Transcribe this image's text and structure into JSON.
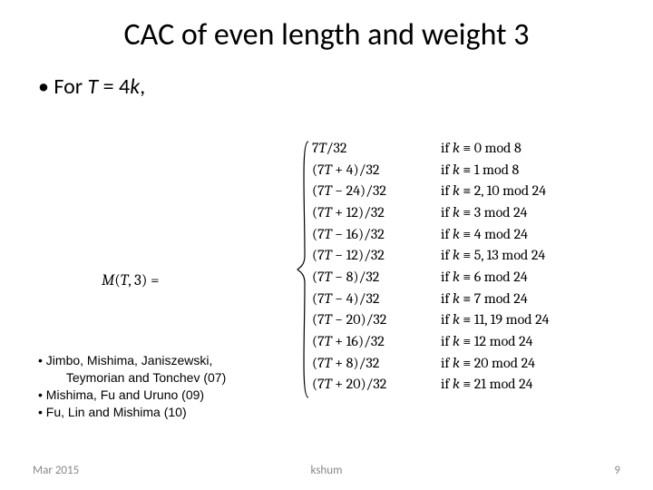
{
  "title": "CAC of even length and weight 3",
  "main_bullet_prefix": "• For ",
  "main_bullet_var": "T",
  "main_bullet_eq": " = 4",
  "main_bullet_k": "k",
  "main_bullet_suffix": ",",
  "mlabel_M": "M",
  "mlabel_open": "(",
  "mlabel_T": "T",
  "mlabel_rest": ", 3) =",
  "cases": [
    {
      "lhs": "7T/32",
      "rhs": "if k ≡ 0 mod 8"
    },
    {
      "lhs": "(7T + 4)/32",
      "rhs": "if k ≡ 1 mod 8"
    },
    {
      "lhs": "(7T − 24)/32",
      "rhs": "if k ≡ 2, 10 mod 24"
    },
    {
      "lhs": "(7T + 12)/32",
      "rhs": "if k ≡ 3 mod 24"
    },
    {
      "lhs": "(7T − 16)/32",
      "rhs": "if k ≡ 4 mod 24"
    },
    {
      "lhs": "(7T − 12)/32",
      "rhs": "if k ≡ 5, 13 mod 24"
    },
    {
      "lhs": "(7T − 8)/32",
      "rhs": "if k ≡ 6 mod 24"
    },
    {
      "lhs": "(7T − 4)/32",
      "rhs": "if k ≡ 7 mod 24"
    },
    {
      "lhs": "(7T − 20)/32",
      "rhs": "if k ≡ 11, 19 mod 24"
    },
    {
      "lhs": "(7T + 16)/32",
      "rhs": "if k ≡ 12 mod 24"
    },
    {
      "lhs": "(7T + 8)/32",
      "rhs": "if k ≡ 20 mod 24"
    },
    {
      "lhs": "(7T + 20)/32",
      "rhs": "if k ≡ 21 mod 24"
    }
  ],
  "refs": [
    "• Jimbo, Mishima, Janiszewski,",
    "        Teymorian and Tonchev (07)",
    "• Mishima, Fu and Uruno (09)",
    "• Fu, Lin and Mishima (10)"
  ],
  "footer": {
    "date": "Mar 2015",
    "center": "kshum",
    "page": "9"
  },
  "colors": {
    "text": "#000000",
    "footer": "#888888",
    "bg": "#ffffff"
  }
}
